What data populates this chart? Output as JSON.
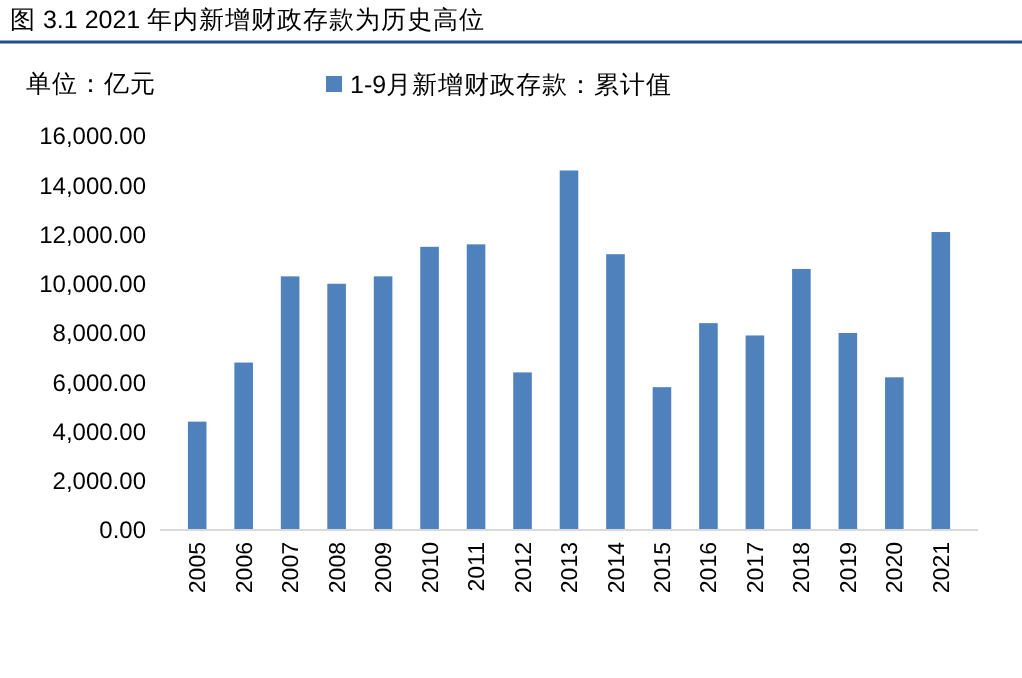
{
  "chart_data": {
    "type": "bar",
    "title": "图 3.1 2021 年内新增财政存款为历史高位",
    "annotations": [
      "单位：亿元"
    ],
    "categories": [
      "2005",
      "2006",
      "2007",
      "2008",
      "2009",
      "2010",
      "2011",
      "2012",
      "2013",
      "2014",
      "2015",
      "2016",
      "2017",
      "2018",
      "2019",
      "2020",
      "2021"
    ],
    "series": [
      {
        "name": "1-9月新增财政存款：累计值",
        "color": "#4f81bd",
        "values": [
          4400,
          6800,
          10300,
          10000,
          10300,
          11500,
          11600,
          6400,
          14600,
          11200,
          5800,
          8400,
          7900,
          10600,
          8000,
          6200,
          12100
        ]
      }
    ],
    "ylim": [
      0,
      16000
    ],
    "yticks": [
      {
        "value": 0,
        "label": "0.00"
      },
      {
        "value": 2000,
        "label": "2,000.00"
      },
      {
        "value": 4000,
        "label": "4,000.00"
      },
      {
        "value": 6000,
        "label": "6,000.00"
      },
      {
        "value": 8000,
        "label": "8,000.00"
      },
      {
        "value": 10000,
        "label": "10,000.00"
      },
      {
        "value": 12000,
        "label": "12,000.00"
      },
      {
        "value": 14000,
        "label": "14,000.00"
      },
      {
        "value": 16000,
        "label": "16,000.00"
      }
    ],
    "legend": "top",
    "grid": false
  }
}
